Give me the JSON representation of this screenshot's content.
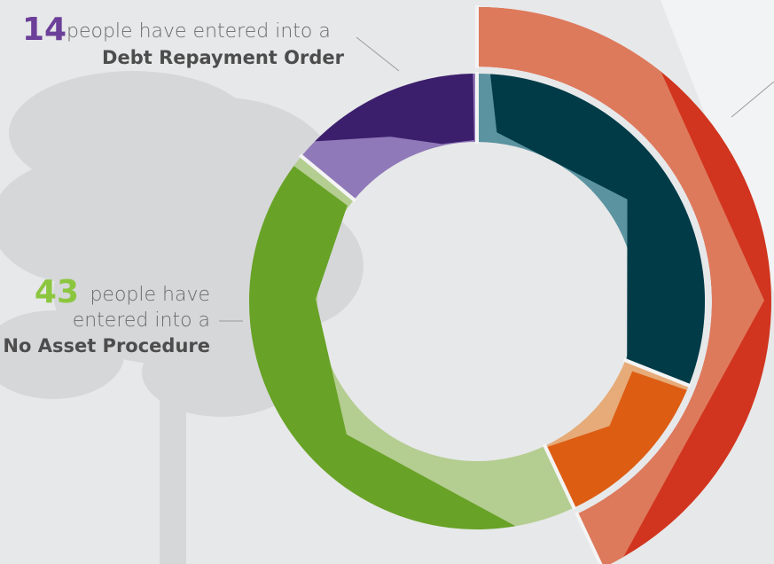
{
  "chart_data": {
    "type": "donut",
    "rings": [
      {
        "values": [
          31,
          12,
          43,
          14
        ],
        "colors": [
          "#5b93a0",
          "#e6ab78",
          "#b4cd90",
          "#9079b9"
        ],
        "accent_colors": [
          "#003b47",
          "#dd5d13",
          "#68a227",
          "#3c1f6c"
        ]
      },
      {
        "values": [
          43
        ],
        "colors": [
          "#de7a5c"
        ],
        "accent_colors": [
          "#d1351f"
        ]
      }
    ],
    "annotations": [
      {
        "lines": [
          "people have entered into a"
        ],
        "emphasis": "Debt Repayment Order",
        "color": "#6c3f99"
      },
      {
        "lines": [
          "people have",
          "entered into a"
        ],
        "emphasis": "No Asset Procedure",
        "color": "#8cc63f"
      }
    ]
  }
}
